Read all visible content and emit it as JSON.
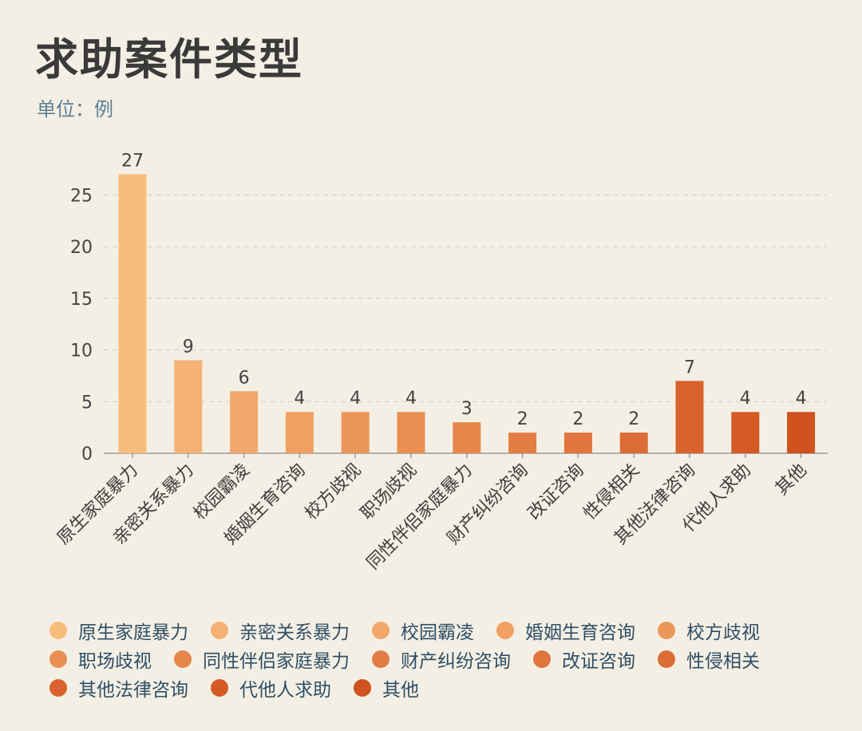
{
  "title": "求助案件类型",
  "subtitle": "单位：例",
  "chart_data": {
    "type": "bar",
    "title": "求助案件类型",
    "ylabel": "单位：例",
    "ylim": [
      0,
      28
    ],
    "yticks": [
      0,
      5,
      10,
      15,
      20,
      25
    ],
    "grid": true,
    "legend": "bottom",
    "categories": [
      "原生家庭暴力",
      "亲密关系暴力",
      "校园霸凌",
      "婚姻生育咨询",
      "校方歧视",
      "职场歧视",
      "同性伴侣家庭暴力",
      "财产纠纷咨询",
      "改证咨询",
      "性侵相关",
      "其他法律咨询",
      "代他人求助",
      "其他"
    ],
    "values": [
      27,
      9,
      6,
      4,
      4,
      4,
      3,
      2,
      2,
      2,
      7,
      4,
      4
    ],
    "colors": [
      "#f7bd7c",
      "#f5b173",
      "#f2a86b",
      "#efa062",
      "#ec975a",
      "#e98f53",
      "#e6864b",
      "#e37d44",
      "#e0753e",
      "#dc6c36",
      "#d9622e",
      "#d45a26",
      "#cf5220"
    ]
  },
  "legend_rows": [
    [
      0,
      1,
      2,
      3,
      4
    ],
    [
      5,
      6,
      7,
      8,
      9
    ],
    [
      10,
      11,
      12
    ]
  ]
}
